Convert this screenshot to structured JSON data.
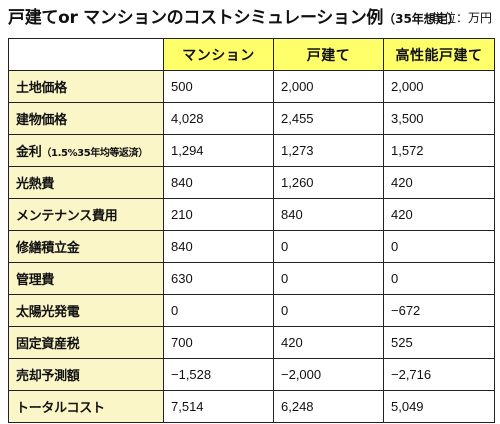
{
  "title": {
    "main": "戸建てor マンションのコストシミュレーション例",
    "sub": "（35年想定）"
  },
  "unit": "単位：万円",
  "columns": [
    "マンション",
    "戸建て",
    "高性能戸建て"
  ],
  "rows": [
    {
      "label": "土地価格",
      "note": "",
      "values": [
        "500",
        "2,000",
        "2,000"
      ]
    },
    {
      "label": "建物価格",
      "note": "",
      "values": [
        "4,028",
        "2,455",
        "3,500"
      ]
    },
    {
      "label": "金利",
      "note": "（1.5%35年均等返済）",
      "values": [
        "1,294",
        "1,273",
        "1,572"
      ]
    },
    {
      "label": "光熱費",
      "note": "",
      "values": [
        "840",
        "1,260",
        "420"
      ]
    },
    {
      "label": "メンテナンス費用",
      "note": "",
      "values": [
        "210",
        "840",
        "420"
      ]
    },
    {
      "label": "修繕積立金",
      "note": "",
      "values": [
        "840",
        "0",
        "0"
      ]
    },
    {
      "label": "管理費",
      "note": "",
      "values": [
        "630",
        "0",
        "0"
      ]
    },
    {
      "label": "太陽光発電",
      "note": "",
      "values": [
        "0",
        "0",
        "−672"
      ]
    },
    {
      "label": "固定資産税",
      "note": "",
      "values": [
        "700",
        "420",
        "525"
      ]
    },
    {
      "label": "売却予測額",
      "note": "",
      "values": [
        "−1,528",
        "−2,000",
        "−2,716"
      ]
    },
    {
      "label": "トータルコスト",
      "note": "",
      "values": [
        "7,514",
        "6,248",
        "5,049"
      ]
    }
  ]
}
